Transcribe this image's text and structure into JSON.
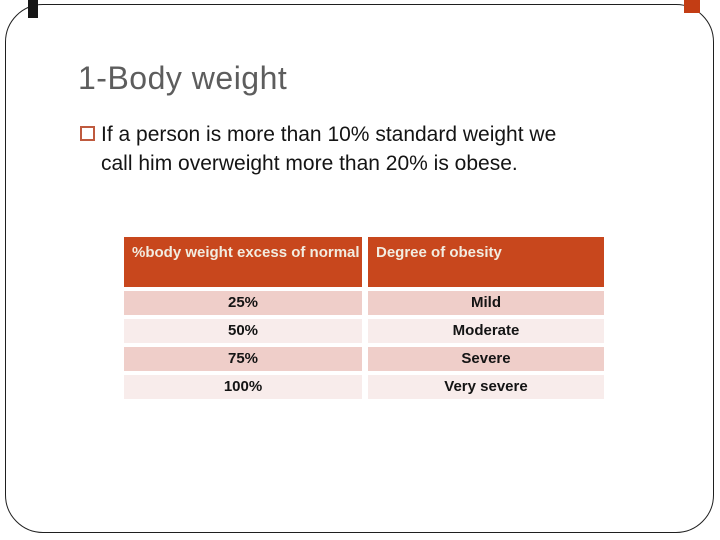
{
  "slide": {
    "title": "1-Body weight",
    "bullet_text_lines": [
      "If a person is more than 10% standard weight we",
      "call him overweight more than 20% is obese."
    ]
  },
  "table": {
    "headers": [
      "%body weight excess of normal",
      "Degree of obesity"
    ],
    "rows": [
      {
        "excess": "25%",
        "degree": "Mild"
      },
      {
        "excess": "50%",
        "degree": "Moderate"
      },
      {
        "excess": "75%",
        "degree": "Severe"
      },
      {
        "excess": "100%",
        "degree": "Very severe"
      }
    ]
  },
  "colors": {
    "header_bg": "#C8471D",
    "header_text": "#F2ECE0",
    "row_dark": "#EFCEC9",
    "row_light": "#F8ECEB",
    "title_text": "#5D5D5D",
    "body_text": "#141414",
    "bullet_outline": "#BF5A3E",
    "frame_border": "#1F1F1F",
    "marker_black": "#161616",
    "marker_orange": "#C33D14"
  }
}
